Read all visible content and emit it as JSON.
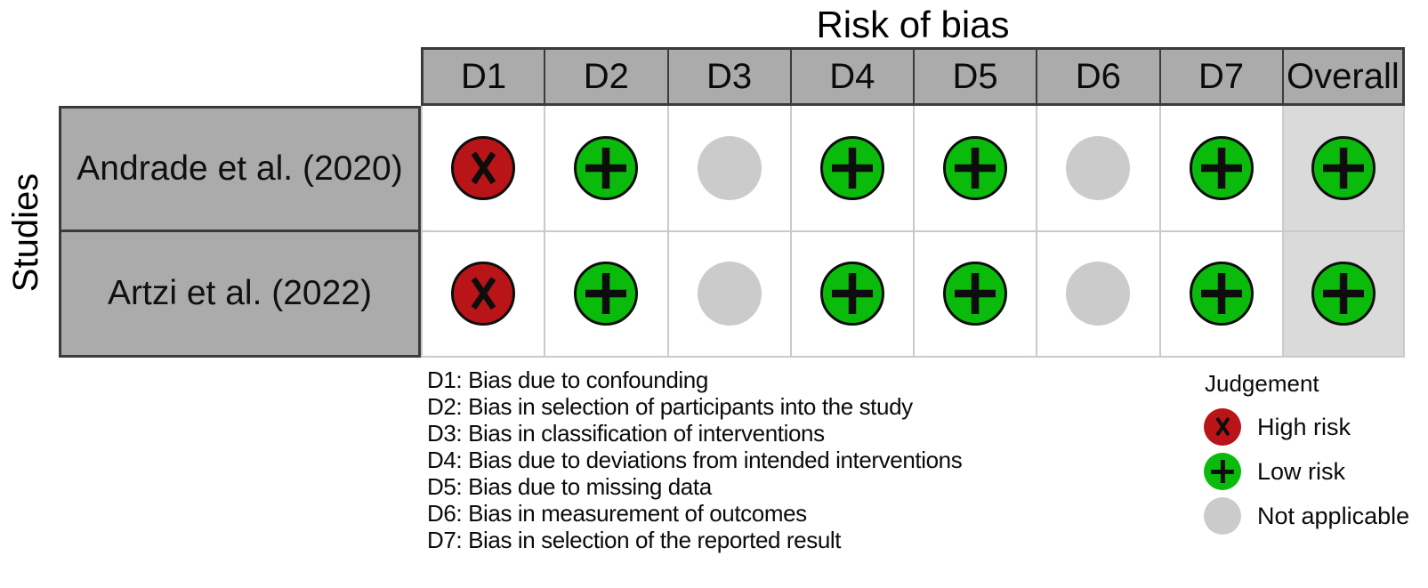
{
  "chart_data": {
    "type": "table",
    "title": "Risk of bias",
    "ylabel": "Studies",
    "columns": [
      "D1",
      "D2",
      "D3",
      "D4",
      "D5",
      "D6",
      "D7",
      "Overall"
    ],
    "rows": [
      {
        "study": "Andrade et al. (2020)",
        "judgements": [
          "high",
          "low",
          "na",
          "low",
          "low",
          "na",
          "low",
          "low"
        ]
      },
      {
        "study": "Artzi et al. (2022)",
        "judgements": [
          "high",
          "low",
          "na",
          "low",
          "low",
          "na",
          "low",
          "low"
        ]
      }
    ],
    "legend_position": "bottom-right",
    "grid": "boxed-cells"
  },
  "footnotes": [
    "D1: Bias due to confounding",
    "D2: Bias in selection of participants into the study",
    "D3: Bias in classification of interventions",
    "D4: Bias due to deviations from intended interventions",
    "D5: Bias due to missing data",
    "D6: Bias in measurement of outcomes",
    "D7: Bias in selection of the reported result"
  ],
  "legend": {
    "title": "Judgement",
    "items": [
      {
        "key": "high",
        "label": "High risk",
        "symbol": "x-icon"
      },
      {
        "key": "low",
        "label": "Low risk",
        "symbol": "plus-icon"
      },
      {
        "key": "na",
        "label": "Not applicable",
        "symbol": "none"
      }
    ]
  },
  "colors": {
    "high_risk": "#B91417",
    "low_risk": "#0ABB0B",
    "not_applicable": "#CBCBCB",
    "header_bg": "#ABABAB",
    "overall_column_bg": "#DADADA",
    "cell_grid": "#C7CCC7",
    "frame": "#3B3B3B",
    "symbol": "#0D0D0D"
  }
}
